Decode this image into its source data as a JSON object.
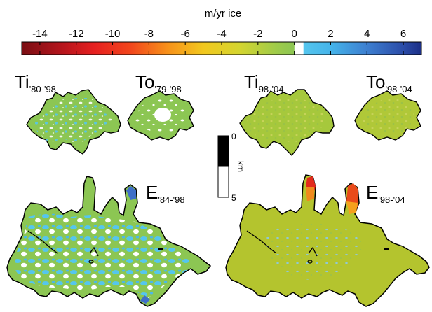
{
  "colorbar": {
    "unit_label": "m/yr ice",
    "min": -15,
    "max": 7,
    "ticks": [
      "-14",
      "-12",
      "-10",
      "-8",
      "-6",
      "-4",
      "-2",
      "0",
      "2",
      "4",
      "6"
    ],
    "tick_values": [
      -14,
      -12,
      -10,
      -8,
      -6,
      -4,
      -2,
      0,
      2,
      4,
      6
    ],
    "stops": [
      {
        "v": -15,
        "c": "#7a0f14"
      },
      {
        "v": -13,
        "c": "#b0141c"
      },
      {
        "v": -11,
        "c": "#e62020"
      },
      {
        "v": -9,
        "c": "#f2461c"
      },
      {
        "v": -7,
        "c": "#f7901a"
      },
      {
        "v": -5,
        "c": "#f2c81e"
      },
      {
        "v": -3,
        "c": "#d4d530"
      },
      {
        "v": -1,
        "c": "#9fcb4a"
      },
      {
        "v": 0,
        "c": "#8cc653"
      },
      {
        "v": 0.01,
        "c": "#ffffff"
      },
      {
        "v": 0.5,
        "c": "#ffffff"
      },
      {
        "v": 0.51,
        "c": "#55c6ee"
      },
      {
        "v": 2,
        "c": "#45b4ea"
      },
      {
        "v": 4,
        "c": "#3d7fd0"
      },
      {
        "v": 6,
        "c": "#2b4ca8"
      },
      {
        "v": 7,
        "c": "#1b2e86"
      }
    ]
  },
  "panels": [
    {
      "id": "ti-80-98",
      "main": "Ti",
      "sub": "'80-'98",
      "fill": "#8cc653",
      "speck": "#55c6ee"
    },
    {
      "id": "to-79-98",
      "main": "To",
      "sub": "'79-'98",
      "fill": "#8cc653",
      "speck": "#ffffff"
    },
    {
      "id": "ti-98-04",
      "main": "Ti",
      "sub": "98-'04",
      "fill": "#a6c83c",
      "speck": "#b9d070"
    },
    {
      "id": "to-98-04",
      "main": "To",
      "sub": "'98-'04",
      "fill": "#b0c838",
      "speck": "#c4d35a"
    },
    {
      "id": "e-84-98",
      "main": "E",
      "sub": "'84-'98",
      "fill": "#8cc653",
      "speck": "#55c6ee"
    },
    {
      "id": "e-98-04",
      "main": "E",
      "sub": "'98-'04",
      "fill": "#b4c42e",
      "speck": "#7fc8d8"
    }
  ],
  "scalebar": {
    "unit": "km",
    "top_label": "0",
    "bottom_label": "5"
  }
}
